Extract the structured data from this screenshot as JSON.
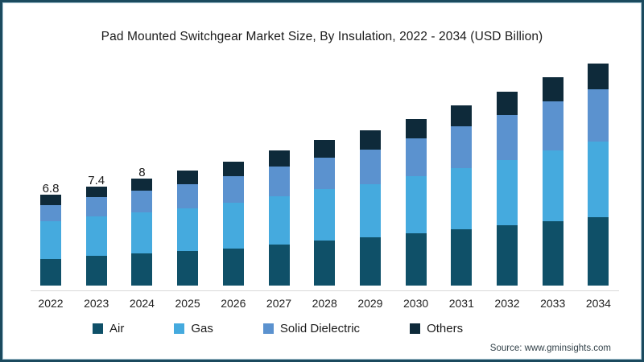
{
  "title": "Pad Mounted Switchgear Market Size, By Insulation, 2022 - 2034 (USD Billion)",
  "source": "Source: www.gminsights.com",
  "frame": {
    "border_color": "#1b4a5e",
    "inner_line_color": "#aac8d6"
  },
  "chart_data": {
    "type": "bar",
    "stacked": true,
    "title": "Pad Mounted Switchgear Market Size, By Insulation, 2022 - 2034 (USD Billion)",
    "categories": [
      "2022",
      "2023",
      "2024",
      "2025",
      "2026",
      "2027",
      "2028",
      "2029",
      "2030",
      "2031",
      "2032",
      "2033",
      "2034"
    ],
    "series": [
      {
        "name": "Air",
        "color": "#0f5068",
        "values": [
          2.0,
          2.2,
          2.4,
          2.6,
          2.8,
          3.1,
          3.4,
          3.6,
          3.9,
          4.2,
          4.5,
          4.8,
          5.1
        ]
      },
      {
        "name": "Gas",
        "color": "#45aade",
        "values": [
          2.8,
          3.0,
          3.1,
          3.2,
          3.4,
          3.6,
          3.8,
          4.0,
          4.3,
          4.6,
          4.9,
          5.3,
          5.7
        ]
      },
      {
        "name": "Solid Dielectric",
        "color": "#5b92cf",
        "values": [
          1.2,
          1.4,
          1.6,
          1.8,
          2.0,
          2.2,
          2.4,
          2.6,
          2.8,
          3.1,
          3.4,
          3.7,
          3.9
        ]
      },
      {
        "name": "Others",
        "color": "#0e2a3a",
        "values": [
          0.8,
          0.8,
          0.9,
          1.0,
          1.1,
          1.2,
          1.3,
          1.4,
          1.5,
          1.6,
          1.7,
          1.8,
          1.9
        ]
      }
    ],
    "totals": [
      6.8,
      7.4,
      8.0,
      8.6,
      9.3,
      10.1,
      10.9,
      11.6,
      12.5,
      13.5,
      14.5,
      15.6,
      16.6
    ],
    "visible_value_labels": [
      {
        "category": "2022",
        "text": "6.8"
      },
      {
        "category": "2023",
        "text": "7.4"
      },
      {
        "category": "2024",
        "text": "8"
      }
    ],
    "xlabel": "",
    "ylabel": "",
    "ylim": [
      0,
      18
    ],
    "grid": false,
    "y_axis_shown": false,
    "legend_position": "bottom",
    "axis_line_color": "#d9d9d9"
  }
}
